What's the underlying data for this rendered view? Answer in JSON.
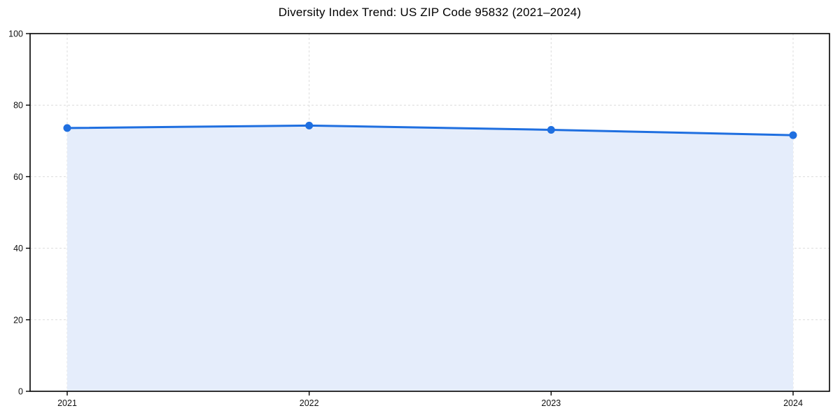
{
  "chart_data": {
    "type": "area",
    "title": "Diversity Index Trend: US ZIP Code 95832 (2021–2024)",
    "x": [
      "2021",
      "2022",
      "2023",
      "2024"
    ],
    "series": [
      {
        "name": "Diversity Index",
        "values": [
          73.6,
          74.3,
          73.1,
          71.6
        ]
      }
    ],
    "xlabel": "",
    "ylabel": "",
    "ylim": [
      0,
      100
    ],
    "yticks": [
      0,
      20,
      40,
      60,
      80,
      100
    ],
    "grid": true,
    "legend": "none",
    "line_color": "#1f6fe0",
    "marker_color": "#1f6fe0",
    "fill_color": "#e5edfb",
    "grid_color": "#dcdcdc",
    "axis_color": "#000000"
  }
}
